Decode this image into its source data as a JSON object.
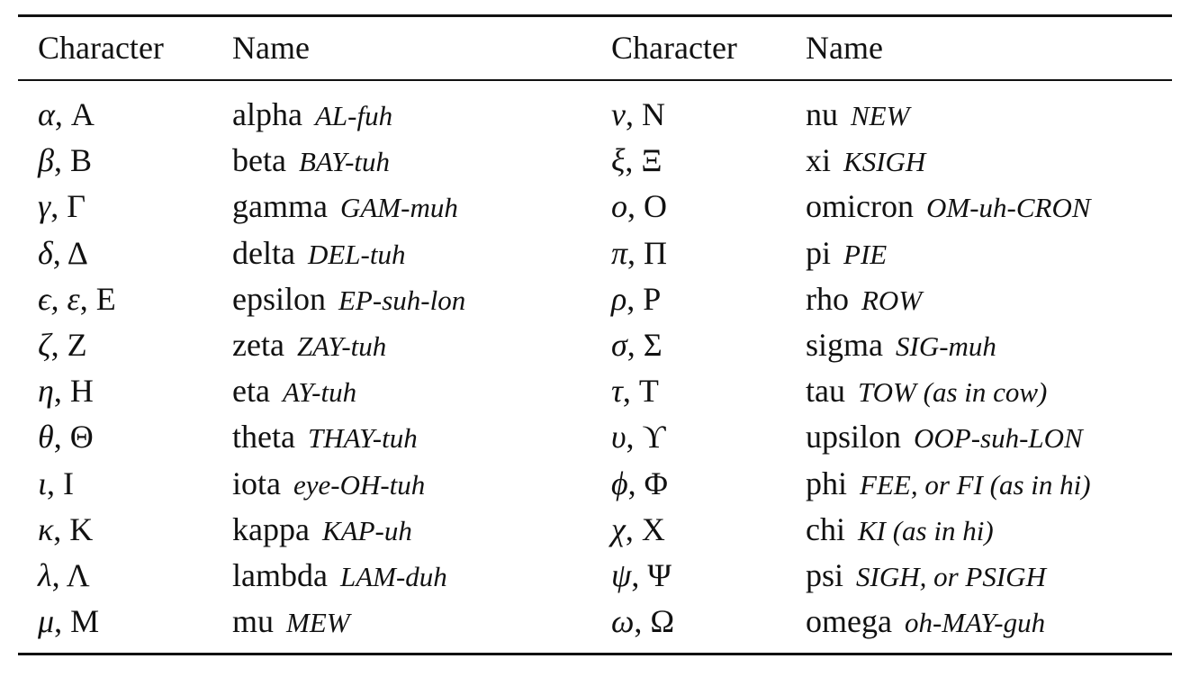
{
  "table": {
    "headers": {
      "left_character": "Character",
      "left_name": "Name",
      "right_character": "Character",
      "right_name": "Name"
    },
    "left_rows": [
      {
        "lower": "α",
        "sep": ", ",
        "upper": "A",
        "name": "alpha",
        "pronunciation": "AL-fuh"
      },
      {
        "lower": "β",
        "sep": ", ",
        "upper": "B",
        "name": "beta",
        "pronunciation": "BAY-tuh"
      },
      {
        "lower": "γ",
        "sep": ", ",
        "upper": "Γ",
        "name": "gamma",
        "pronunciation": "GAM-muh"
      },
      {
        "lower": "δ",
        "sep": ", ",
        "upper": "Δ",
        "name": "delta",
        "pronunciation": "DEL-tuh"
      },
      {
        "lower": "ϵ, ε",
        "sep": ", ",
        "upper": "E",
        "name": "epsilon",
        "pronunciation": "EP-suh-lon"
      },
      {
        "lower": "ζ",
        "sep": ", ",
        "upper": "Z",
        "name": "zeta",
        "pronunciation": "ZAY-tuh"
      },
      {
        "lower": "η",
        "sep": ", ",
        "upper": "H",
        "name": "eta",
        "pronunciation": "AY-tuh"
      },
      {
        "lower": "θ",
        "sep": ", ",
        "upper": "Θ",
        "name": "theta",
        "pronunciation": "THAY-tuh"
      },
      {
        "lower": "ι",
        "sep": ", ",
        "upper": "I",
        "name": "iota",
        "pronunciation": "eye-OH-tuh"
      },
      {
        "lower": "κ",
        "sep": ", ",
        "upper": "K",
        "name": "kappa",
        "pronunciation": "KAP-uh"
      },
      {
        "lower": "λ",
        "sep": ", ",
        "upper": "Λ",
        "name": "lambda",
        "pronunciation": "LAM-duh"
      },
      {
        "lower": "μ",
        "sep": ", ",
        "upper": "M",
        "name": "mu",
        "pronunciation": "MEW"
      }
    ],
    "right_rows": [
      {
        "lower": "ν",
        "sep": ", ",
        "upper": "N",
        "name": "nu",
        "pronunciation": "NEW"
      },
      {
        "lower": "ξ",
        "sep": ", ",
        "upper": "Ξ",
        "name": "xi",
        "pronunciation": "KSIGH"
      },
      {
        "lower": "o",
        "sep": ", ",
        "upper": "O",
        "name": "omicron",
        "pronunciation": "OM-uh-CRON"
      },
      {
        "lower": "π",
        "sep": ", ",
        "upper": "Π",
        "name": "pi",
        "pronunciation": "PIE"
      },
      {
        "lower": "ρ",
        "sep": ", ",
        "upper": "P",
        "name": "rho",
        "pronunciation": "ROW"
      },
      {
        "lower": "σ",
        "sep": ", ",
        "upper": "Σ",
        "name": "sigma",
        "pronunciation": "SIG-muh"
      },
      {
        "lower": "τ",
        "sep": ", ",
        "upper": "T",
        "name": "tau",
        "pronunciation": "TOW (as in cow)"
      },
      {
        "lower": "υ",
        "sep": ", ",
        "upper": "ϒ",
        "name": "upsilon",
        "pronunciation": "OOP-suh-LON"
      },
      {
        "lower": "ϕ",
        "sep": ", ",
        "upper": "Φ",
        "name": "phi",
        "pronunciation": "FEE, or FI (as in hi)"
      },
      {
        "lower": "χ",
        "sep": ", ",
        "upper": "X",
        "name": "chi",
        "pronunciation": "KI (as in hi)"
      },
      {
        "lower": "ψ",
        "sep": ", ",
        "upper": "Ψ",
        "name": "psi",
        "pronunciation": "SIGH, or PSIGH"
      },
      {
        "lower": "ω",
        "sep": ", ",
        "upper": "Ω",
        "name": "omega",
        "pronunciation": "oh-MAY-guh"
      }
    ]
  }
}
